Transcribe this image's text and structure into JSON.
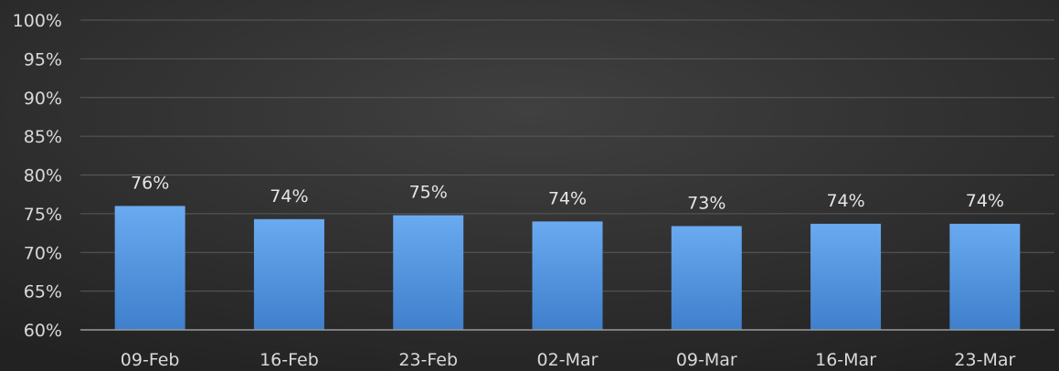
{
  "chart_data": {
    "type": "bar",
    "categories": [
      "09-Feb",
      "16-Feb",
      "23-Feb",
      "02-Mar",
      "09-Mar",
      "16-Mar",
      "23-Mar"
    ],
    "values": [
      76,
      74.3,
      74.8,
      74,
      73.4,
      73.7,
      73.7
    ],
    "data_labels": [
      "76%",
      "74%",
      "75%",
      "74%",
      "73%",
      "74%",
      "74%"
    ],
    "y_ticks": [
      "60%",
      "65%",
      "70%",
      "75%",
      "80%",
      "85%",
      "90%",
      "95%",
      "100%"
    ],
    "ylim": [
      60,
      100
    ],
    "y_tick_step": 5,
    "grid": true,
    "legend": "none",
    "colors": {
      "background": "#2b2b2b",
      "bar_top": "#6aaaf0",
      "bar_bottom": "#3f7fcc"
    }
  }
}
